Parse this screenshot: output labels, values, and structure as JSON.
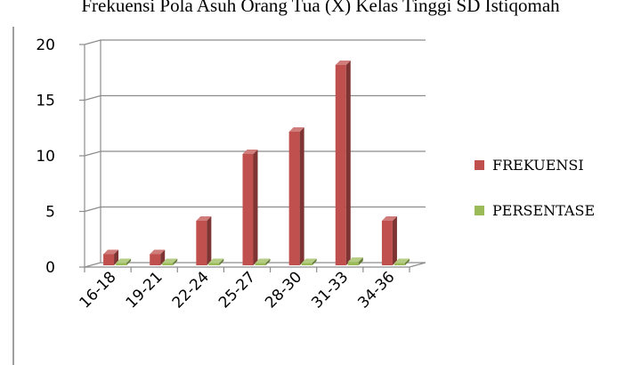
{
  "chart_data": {
    "type": "bar",
    "title": "Frekuensi Pola Asuh Orang Tua (X) Kelas Tinggi SD Istiqomah",
    "categories": [
      "16-18",
      "19-21",
      "22-24",
      "25-27",
      "28-30",
      "31-33",
      "34-36"
    ],
    "series": [
      {
        "name": "FREKUENSI",
        "values": [
          1,
          1,
          4,
          10,
          12,
          18,
          4
        ],
        "color": "#c0504d"
      },
      {
        "name": "PERSENTASE",
        "values": [
          0.02,
          0.02,
          0.07,
          0.17,
          0.2,
          0.31,
          0.07
        ],
        "color": "#9bbb59"
      }
    ],
    "ylim": [
      0,
      20
    ],
    "yticks": [
      0,
      5,
      10,
      15,
      20
    ],
    "grid": true,
    "legend": "right",
    "style": "3d-column"
  }
}
